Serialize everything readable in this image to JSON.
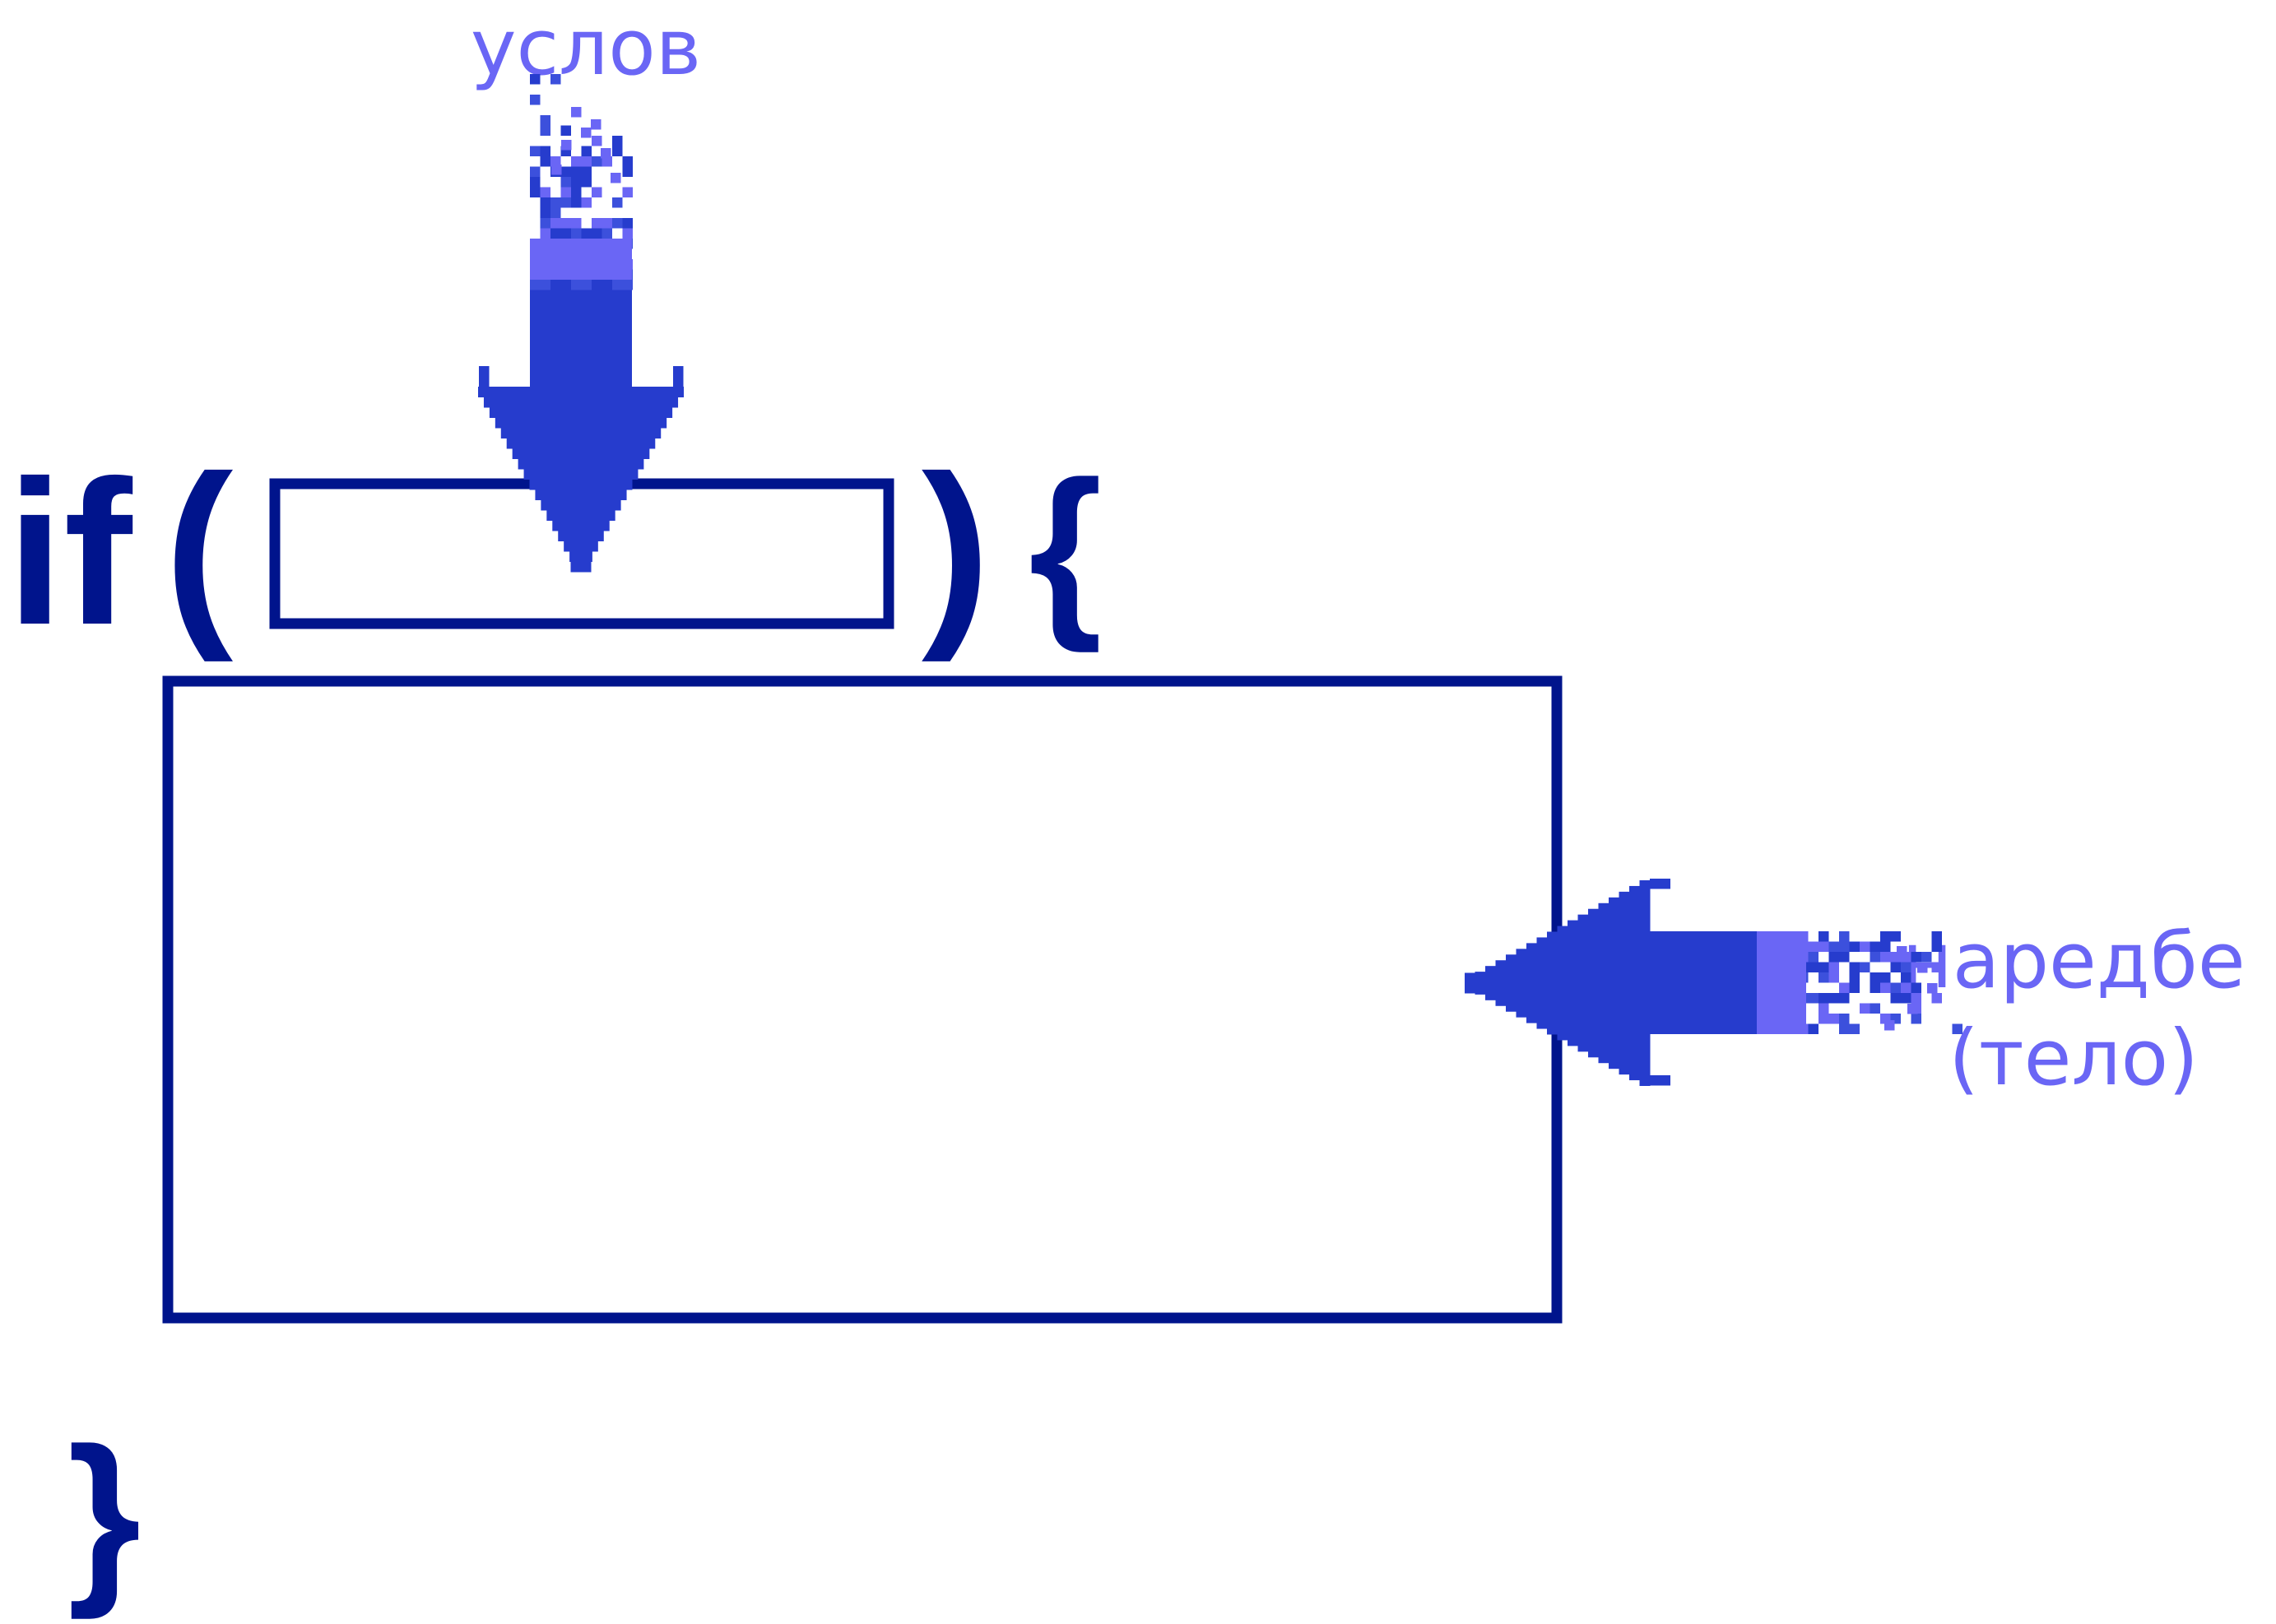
{
  "code": {
    "keyword": "if",
    "open_paren": "(",
    "close_paren": ")",
    "open_brace": "{",
    "close_brace": "}"
  },
  "labels": {
    "condition": "услов",
    "body_line1": "наредбе",
    "body_line2": "(тело)"
  },
  "colors": {
    "code": "#00148c",
    "arrow_dark": "#263ccd",
    "arrow_mid": "#3c50dc",
    "arrow_light": "#6a66f5",
    "label": "#6a66f5"
  },
  "icons": {
    "condition_arrow": "pixel-arrow-down-icon",
    "body_arrow": "pixel-arrow-left-icon"
  }
}
